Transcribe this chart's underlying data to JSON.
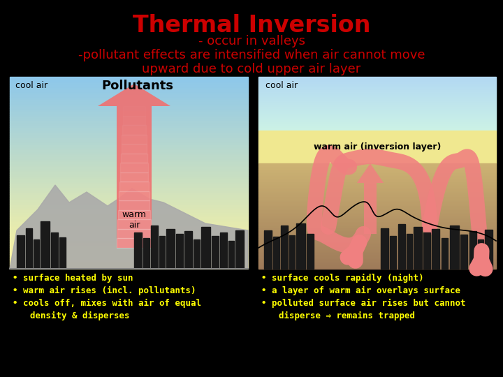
{
  "title": "Thermal Inversion",
  "subtitle_line1": "- occur in valleys",
  "subtitle_line2": "-pollutant effects are intensified when air cannot move",
  "subtitle_line3": "upward due to cold upper air layer",
  "title_color": "#cc0000",
  "subtitle_color": "#cc0000",
  "bg_color": "#000000",
  "panel_left_label_top": "cool air",
  "panel_left_center_label": "Pollutants",
  "panel_left_bottom_label": "warm\nair",
  "panel_right_label_top": "cool air",
  "panel_right_warm_label": "warm air (inversion layer)",
  "bullets_left": [
    "• surface heated by sun",
    "• warm air rises (incl. pollutants)",
    "• cools off, mixes with air of equal\n  density & disperses"
  ],
  "bullets_right": [
    "• surface cools rapidly (night)",
    "• a layer of warm air overlays surface",
    "• polluted surface air rises but cannot\n  disperse ⇒ remains trapped"
  ],
  "bullet_color": "#ffff00",
  "arrow_color": "#ff6060"
}
